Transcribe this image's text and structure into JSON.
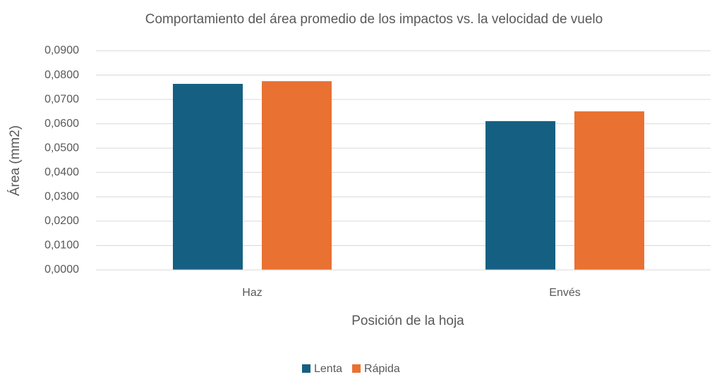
{
  "chart_data": {
    "type": "bar",
    "title": "Comportamiento del área promedio de los impactos vs. la velocidad de vuelo",
    "x_label": "Posición de la hoja",
    "y_label": "Área (mm2)",
    "categories": [
      "Haz",
      "Envés"
    ],
    "series": [
      {
        "name": "Lenta",
        "color": "#156082",
        "values": [
          0.0764,
          0.0611
        ]
      },
      {
        "name": "Rápida",
        "color": "#e97132",
        "values": [
          0.0775,
          0.0651
        ]
      }
    ],
    "ylim": [
      0,
      0.09
    ],
    "yticks": [
      {
        "value": 0,
        "label": "0,0000"
      },
      {
        "value": 0.01,
        "label": "0,0100"
      },
      {
        "value": 0.02,
        "label": "0,0200"
      },
      {
        "value": 0.03,
        "label": "0,0300"
      },
      {
        "value": 0.04,
        "label": "0,0400"
      },
      {
        "value": 0.05,
        "label": "0,0500"
      },
      {
        "value": 0.06,
        "label": "0,0600"
      },
      {
        "value": 0.07,
        "label": "0,0700"
      },
      {
        "value": 0.08,
        "label": "0,0800"
      },
      {
        "value": 0.09,
        "label": "0,0900"
      }
    ],
    "grid": true,
    "legend": "bottom"
  }
}
